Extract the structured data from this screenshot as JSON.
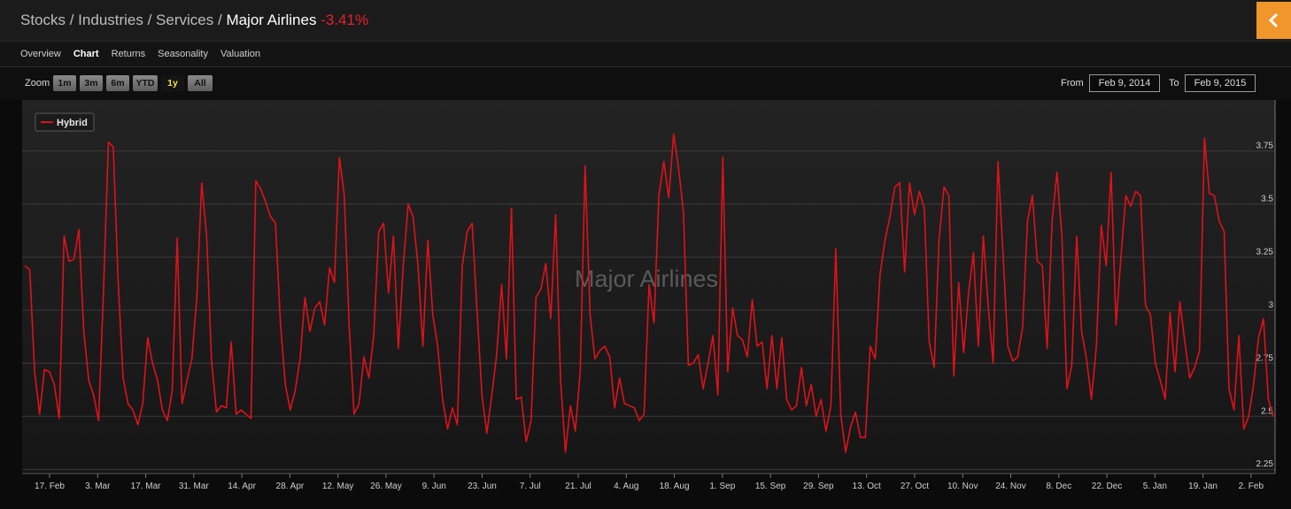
{
  "header": {
    "breadcrumb": "Stocks / Industries / Services /",
    "title": "Major Airlines",
    "change": "-3.41%"
  },
  "tabs": [
    "Overview",
    "Chart",
    "Returns",
    "Seasonality",
    "Valuation"
  ],
  "active_tab": 1,
  "zoom": {
    "label": "Zoom",
    "buttons": [
      "1m",
      "3m",
      "6m",
      "YTD",
      "1y",
      "All"
    ],
    "active": 4
  },
  "range": {
    "from_label": "From",
    "from": "Feb 9, 2014",
    "to_label": "To",
    "to": "Feb 9, 2015"
  },
  "chart_data": {
    "type": "line",
    "watermark": "Major Airlines",
    "series": [
      {
        "name": "Hybrid",
        "color": "#e0111b",
        "values": [
          3.21,
          3.19,
          2.71,
          2.51,
          2.72,
          2.71,
          2.65,
          2.49,
          3.35,
          3.23,
          3.24,
          3.38,
          2.9,
          2.67,
          2.6,
          2.48,
          3.08,
          3.79,
          3.77,
          3.13,
          2.68,
          2.56,
          2.53,
          2.46,
          2.56,
          2.87,
          2.75,
          2.67,
          2.53,
          2.48,
          2.62,
          3.34,
          2.56,
          2.67,
          2.77,
          3.06,
          3.6,
          3.35,
          2.76,
          2.52,
          2.55,
          2.54,
          2.85,
          2.51,
          2.53,
          2.51,
          2.49,
          3.61,
          3.57,
          3.51,
          3.44,
          3.41,
          2.94,
          2.65,
          2.53,
          2.62,
          2.77,
          3.06,
          2.9,
          3.01,
          3.04,
          2.93,
          3.2,
          3.13,
          3.72,
          3.54,
          2.92,
          2.51,
          2.56,
          2.78,
          2.68,
          2.88,
          3.37,
          3.41,
          3.08,
          3.35,
          2.82,
          3.21,
          3.5,
          3.44,
          3.21,
          2.83,
          3.33,
          2.98,
          2.83,
          2.58,
          2.44,
          2.54,
          2.46,
          3.21,
          3.37,
          3.41,
          3.0,
          2.6,
          2.42,
          2.6,
          2.79,
          3.12,
          2.77,
          3.48,
          2.58,
          2.59,
          2.38,
          2.48,
          3.06,
          3.1,
          3.22,
          2.96,
          3.45,
          2.67,
          2.33,
          2.55,
          2.43,
          2.71,
          3.68,
          2.98,
          2.77,
          2.81,
          2.83,
          2.78,
          2.54,
          2.68,
          2.56,
          2.55,
          2.54,
          2.48,
          2.51,
          3.12,
          2.94,
          3.54,
          3.7,
          3.53,
          3.83,
          3.67,
          3.46,
          2.74,
          2.75,
          2.79,
          2.63,
          2.75,
          2.88,
          2.6,
          3.72,
          2.71,
          3.01,
          2.88,
          2.86,
          2.78,
          3.05,
          2.83,
          2.85,
          2.63,
          2.88,
          2.63,
          2.87,
          2.58,
          2.53,
          2.55,
          2.73,
          2.55,
          2.65,
          2.5,
          2.58,
          2.43,
          2.55,
          3.29,
          2.51,
          2.33,
          2.45,
          2.52,
          2.4,
          2.4,
          2.83,
          2.77,
          3.17,
          3.33,
          3.44,
          3.58,
          3.6,
          3.18,
          3.6,
          3.45,
          3.56,
          3.48,
          2.85,
          2.73,
          3.33,
          3.58,
          3.54,
          2.69,
          3.13,
          2.8,
          3.08,
          3.27,
          2.83,
          3.35,
          3.02,
          2.75,
          3.7,
          3.27,
          2.83,
          2.76,
          2.78,
          2.92,
          3.42,
          3.54,
          3.23,
          3.21,
          2.82,
          3.42,
          3.65,
          3.35,
          2.63,
          2.74,
          3.35,
          2.9,
          2.77,
          2.58,
          2.83,
          3.4,
          3.21,
          3.65,
          2.93,
          3.25,
          3.54,
          3.49,
          3.56,
          3.54,
          3.02,
          2.98,
          2.75,
          2.67,
          2.58,
          2.99,
          2.71,
          3.04,
          2.85,
          2.68,
          2.73,
          2.81,
          3.81,
          3.55,
          3.54,
          3.42,
          3.37,
          2.63,
          2.53,
          2.88,
          2.44,
          2.5,
          2.65,
          2.87,
          2.96,
          2.58,
          2.5
        ]
      }
    ],
    "xlim": [
      0,
      365
    ],
    "xticks": [
      {
        "value": 8,
        "label": "17. Feb"
      },
      {
        "value": 22,
        "label": "3. Mar"
      },
      {
        "value": 36,
        "label": "17. Mar"
      },
      {
        "value": 50,
        "label": "31. Mar"
      },
      {
        "value": 64,
        "label": "14. Apr"
      },
      {
        "value": 78,
        "label": "28. Apr"
      },
      {
        "value": 92,
        "label": "12. May"
      },
      {
        "value": 106,
        "label": "26. May"
      },
      {
        "value": 120,
        "label": "9. Jun"
      },
      {
        "value": 134,
        "label": "23. Jun"
      },
      {
        "value": 148,
        "label": "7. Jul"
      },
      {
        "value": 162,
        "label": "21. Jul"
      },
      {
        "value": 176,
        "label": "4. Aug"
      },
      {
        "value": 190,
        "label": "18. Aug"
      },
      {
        "value": 204,
        "label": "1. Sep"
      },
      {
        "value": 218,
        "label": "15. Sep"
      },
      {
        "value": 232,
        "label": "29. Sep"
      },
      {
        "value": 246,
        "label": "13. Oct"
      },
      {
        "value": 260,
        "label": "27. Oct"
      },
      {
        "value": 274,
        "label": "10. Nov"
      },
      {
        "value": 288,
        "label": "24. Nov"
      },
      {
        "value": 302,
        "label": "8. Dec"
      },
      {
        "value": 316,
        "label": "22. Dec"
      },
      {
        "value": 330,
        "label": "5. Jan"
      },
      {
        "value": 344,
        "label": "19. Jan"
      },
      {
        "value": 358,
        "label": "2. Feb"
      }
    ],
    "ylim": [
      2.23,
      3.99
    ],
    "yticks": [
      2.25,
      2.5,
      2.75,
      3,
      3.25,
      3.5,
      3.75
    ],
    "grid": true,
    "legend": "top-left"
  }
}
